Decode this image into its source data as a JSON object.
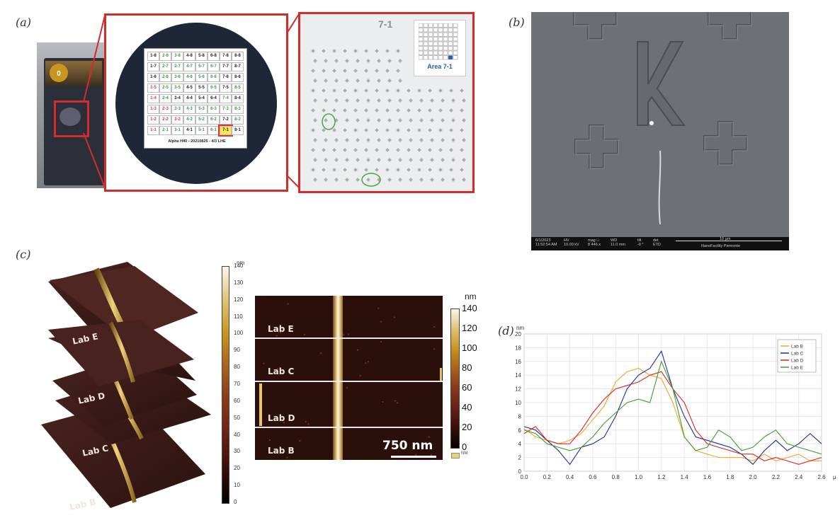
{
  "panels": {
    "a": {
      "label": "(a)",
      "gel_pak_text": "0",
      "chip_labels": [
        "1-8",
        "2-8",
        "3-8",
        "4-8",
        "5-8",
        "6-8",
        "7-8",
        "8-8",
        "1-7",
        "2-7",
        "3-7",
        "4-7",
        "5-7",
        "6-7",
        "7-7",
        "8-7",
        "1-6",
        "2-6",
        "3-6",
        "4-6",
        "5-6",
        "6-6",
        "7-6",
        "8-6",
        "1-5",
        "2-5",
        "3-5",
        "4-5",
        "5-5",
        "6-5",
        "7-5",
        "8-5",
        "1-4",
        "2-4",
        "3-4",
        "4-4",
        "5-4",
        "6-4",
        "7-4",
        "8-4",
        "1-3",
        "2-3",
        "3-3",
        "4-3",
        "5-3",
        "6-3",
        "7-3",
        "8-3",
        "1-2",
        "2-2",
        "3-2",
        "4-2",
        "5-2",
        "6-2",
        "7-2",
        "8-2",
        "1-1",
        "2-1",
        "3-1",
        "4-1",
        "5-1",
        "6-1",
        "7-1",
        "8-1"
      ],
      "chip_colors": {
        "red": "#d83a3a",
        "green": "#3c9a3c",
        "black": "#222222",
        "highlight": "#d33"
      },
      "chip_caption": "Alpha H40 - 20210825 - 4/3 LHE",
      "zoom_title": "7-1",
      "inset_caption": "Area 7-1"
    },
    "b": {
      "label": "(b)",
      "letter": "K",
      "info_bar": {
        "col1": [
          "6/1/2023",
          "11:52:54 AM"
        ],
        "col2": [
          "HV",
          "10.00 kV"
        ],
        "col3": [
          "mag □",
          "8 446 x"
        ],
        "col4": [
          "WD",
          "11.0 mm"
        ],
        "col5": [
          "tilt",
          "-0 °"
        ],
        "col6": [
          "det",
          "ETD"
        ],
        "scale": "10 µm",
        "facility": "NanoFacility Piemonte"
      }
    },
    "c": {
      "label": "(c)",
      "stack_labels": [
        "Lab E",
        "Lab D",
        "Lab C",
        "Lab B"
      ],
      "colorbar_unit": "nm",
      "colorbar_ticks": [
        "0",
        "10",
        "20",
        "30",
        "40",
        "50",
        "60",
        "70",
        "80",
        "90",
        "100",
        "110",
        "120",
        "130",
        "140"
      ],
      "map_labels": [
        "Lab E",
        "Lab C",
        "Lab D",
        "Lab B"
      ],
      "map_colorbar_unit": "nm",
      "map_colorbar_ticks": [
        "0",
        "20",
        "40",
        "60",
        "80",
        "100",
        "120",
        "140"
      ],
      "map_colorbar_footer": "NM",
      "scale_bar_text": "750 nm"
    },
    "d": {
      "label": "(d)",
      "y_unit": "nm",
      "x_unit": "µm"
    }
  },
  "chart_data": {
    "type": "line",
    "xlim": [
      0,
      2.6
    ],
    "ylim": [
      0,
      20
    ],
    "x_ticks": [
      "0.0",
      "0.2",
      "0.4",
      "0.6",
      "0.8",
      "1.0",
      "1.2",
      "1.4",
      "1.6",
      "1.8",
      "2.0",
      "2.2",
      "2.4",
      "2.6"
    ],
    "y_ticks": [
      "0",
      "2",
      "4",
      "6",
      "8",
      "10",
      "12",
      "14",
      "16",
      "18",
      "20"
    ],
    "grid": true,
    "legend": "top-right",
    "x": [
      0.0,
      0.1,
      0.2,
      0.3,
      0.4,
      0.5,
      0.6,
      0.7,
      0.8,
      0.9,
      1.0,
      1.1,
      1.2,
      1.3,
      1.4,
      1.5,
      1.6,
      1.7,
      1.8,
      1.9,
      2.0,
      2.1,
      2.2,
      2.3,
      2.4,
      2.5,
      2.6
    ],
    "series": [
      {
        "name": "Lab B",
        "color": "#f5a623",
        "values": [
          6.2,
          5.0,
          4.5,
          4.0,
          4.5,
          5.5,
          7.5,
          9.5,
          13.0,
          14.5,
          15.0,
          14.0,
          13.5,
          10.0,
          5.0,
          3.0,
          2.5,
          2.0,
          2.0,
          2.0,
          1.5,
          2.5,
          1.5,
          2.0,
          2.5,
          1.5,
          1.5
        ]
      },
      {
        "name": "Lab C",
        "color": "#1f2e9c",
        "values": [
          6.5,
          6.0,
          4.5,
          3.0,
          1.0,
          3.5,
          4.0,
          5.0,
          8.0,
          12.0,
          14.0,
          15.0,
          17.5,
          12.0,
          8.0,
          5.0,
          4.5,
          4.0,
          3.5,
          2.5,
          1.0,
          3.0,
          4.5,
          3.0,
          4.0,
          5.5,
          4.0
        ]
      },
      {
        "name": "Lab D",
        "color": "#e02020",
        "values": [
          5.5,
          6.5,
          4.5,
          4.0,
          4.0,
          6.0,
          8.5,
          10.5,
          12.0,
          12.5,
          13.0,
          14.0,
          14.5,
          12.0,
          10.0,
          6.0,
          4.0,
          3.5,
          3.0,
          2.5,
          2.5,
          1.5,
          2.0,
          1.5,
          1.0,
          1.5,
          2.0
        ]
      },
      {
        "name": "Lab E",
        "color": "#3aa12a",
        "values": [
          6.0,
          5.5,
          4.0,
          3.5,
          3.0,
          3.5,
          5.0,
          7.0,
          8.5,
          10.0,
          10.5,
          10.0,
          16.0,
          12.0,
          5.0,
          3.0,
          3.5,
          6.0,
          5.0,
          3.0,
          3.5,
          5.0,
          6.0,
          4.0,
          3.5,
          3.0,
          2.5
        ]
      }
    ]
  }
}
